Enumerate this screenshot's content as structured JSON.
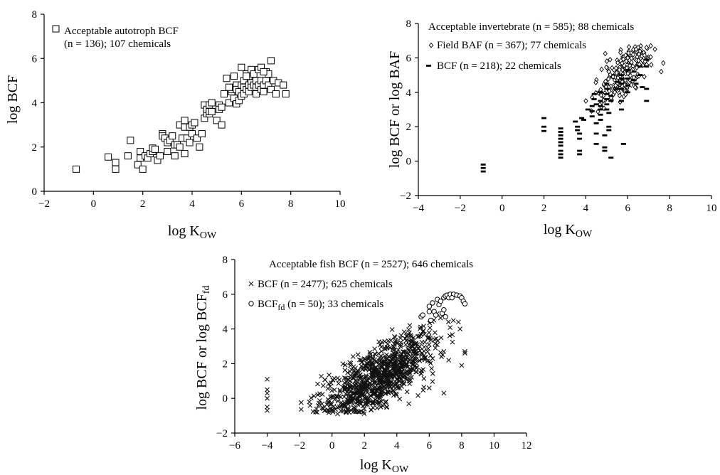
{
  "chart_data": [
    {
      "id": "autotroph",
      "type": "scatter",
      "xlabel_main": "log K",
      "xlabel_sub": "OW",
      "ylabel": "log BCF",
      "xlim": [
        -2,
        10
      ],
      "ylim": [
        0,
        8
      ],
      "xticks": [
        -2,
        0,
        2,
        4,
        6,
        8,
        10
      ],
      "yticks": [
        0,
        2,
        4,
        6,
        8
      ],
      "xtick_labels": [
        "−2",
        "0",
        "2",
        "4",
        "6",
        "8",
        "10"
      ],
      "ytick_labels": [
        "0",
        "2",
        "4",
        "6",
        "8"
      ],
      "legend_lines": [
        "Acceptable autotroph BCF",
        "(n = 136); 107 chemicals"
      ],
      "series": [
        {
          "marker": "square",
          "points": [
            [
              -0.7,
              1.0
            ],
            [
              0.6,
              1.55
            ],
            [
              0.9,
              1.3
            ],
            [
              0.9,
              1.0
            ],
            [
              1.4,
              1.6
            ],
            [
              1.5,
              2.3
            ],
            [
              1.8,
              1.2
            ],
            [
              1.9,
              1.5
            ],
            [
              1.9,
              1.8
            ],
            [
              2.0,
              1.0
            ],
            [
              2.1,
              1.6
            ],
            [
              2.2,
              1.5
            ],
            [
              2.3,
              1.7
            ],
            [
              2.4,
              1.8
            ],
            [
              2.4,
              1.95
            ],
            [
              2.5,
              1.9
            ],
            [
              2.6,
              1.4
            ],
            [
              2.7,
              1.6
            ],
            [
              2.8,
              2.6
            ],
            [
              2.8,
              2.5
            ],
            [
              2.9,
              2.4
            ],
            [
              3.0,
              1.8
            ],
            [
              3.0,
              2.2
            ],
            [
              3.1,
              2.3
            ],
            [
              3.2,
              2.5
            ],
            [
              3.3,
              1.6
            ],
            [
              3.3,
              2.1
            ],
            [
              3.4,
              2.1
            ],
            [
              3.5,
              2.0
            ],
            [
              3.5,
              3.0
            ],
            [
              3.6,
              2.4
            ],
            [
              3.7,
              1.7
            ],
            [
              3.7,
              2.9
            ],
            [
              3.7,
              3.2
            ],
            [
              3.8,
              2.4
            ],
            [
              3.9,
              2.2
            ],
            [
              3.9,
              2.9
            ],
            [
              4.0,
              2.6
            ],
            [
              4.0,
              3.0
            ],
            [
              4.1,
              3.1
            ],
            [
              4.2,
              2.4
            ],
            [
              4.3,
              2.0
            ],
            [
              4.4,
              2.6
            ],
            [
              4.5,
              3.3
            ],
            [
              4.5,
              3.9
            ],
            [
              4.6,
              3.5
            ],
            [
              4.6,
              3.7
            ],
            [
              4.7,
              3.5
            ],
            [
              4.7,
              3.6
            ],
            [
              4.7,
              3.9
            ],
            [
              4.8,
              3.6
            ],
            [
              4.8,
              4.0
            ],
            [
              5.0,
              3.2
            ],
            [
              5.1,
              3.9
            ],
            [
              5.1,
              3.7
            ],
            [
              5.2,
              3.0
            ],
            [
              5.2,
              3.8
            ],
            [
              5.3,
              4.4
            ],
            [
              5.4,
              5.1
            ],
            [
              5.5,
              4.0
            ],
            [
              5.6,
              4.5
            ],
            [
              5.6,
              4.6
            ],
            [
              5.7,
              4.2
            ],
            [
              5.7,
              4.7
            ],
            [
              5.7,
              5.2
            ],
            [
              5.8,
              3.95
            ],
            [
              5.8,
              4.8
            ],
            [
              5.8,
              4.6
            ],
            [
              5.9,
              4.1
            ],
            [
              5.9,
              4.5
            ],
            [
              6.0,
              4.3
            ],
            [
              6.0,
              4.8
            ],
            [
              6.0,
              5.6
            ],
            [
              6.1,
              4.7
            ],
            [
              6.1,
              5.0
            ],
            [
              6.1,
              4.4
            ],
            [
              6.2,
              4.6
            ],
            [
              6.2,
              5.3
            ],
            [
              6.3,
              4.8
            ],
            [
              6.3,
              5.2
            ],
            [
              6.3,
              4.5
            ],
            [
              6.4,
              4.9
            ],
            [
              6.4,
              5.5
            ],
            [
              6.4,
              4.7
            ],
            [
              6.5,
              4.8
            ],
            [
              6.5,
              5.3
            ],
            [
              6.6,
              4.7
            ],
            [
              6.6,
              5.0
            ],
            [
              6.6,
              4.4
            ],
            [
              6.7,
              4.8
            ],
            [
              6.7,
              5.5
            ],
            [
              6.8,
              4.6
            ],
            [
              6.8,
              5.0
            ],
            [
              6.8,
              5.6
            ],
            [
              6.9,
              4.8
            ],
            [
              6.9,
              4.5
            ],
            [
              7.0,
              5.0
            ],
            [
              7.0,
              5.4
            ],
            [
              7.1,
              5.3
            ],
            [
              7.1,
              4.8
            ],
            [
              7.2,
              5.9
            ],
            [
              7.2,
              4.6
            ],
            [
              7.3,
              5.0
            ],
            [
              7.4,
              4.4
            ],
            [
              7.5,
              4.9
            ],
            [
              7.7,
              4.8
            ],
            [
              7.8,
              4.4
            ],
            [
              6.2,
              5.2
            ],
            [
              5.5,
              4.7
            ],
            [
              6.9,
              5.4
            ]
          ]
        }
      ]
    },
    {
      "id": "invertebrate",
      "type": "scatter",
      "xlabel_main": "log K",
      "xlabel_sub": "OW",
      "ylabel": "log BCF or log BAF",
      "xlim": [
        -4,
        10
      ],
      "ylim": [
        -2,
        8
      ],
      "xticks": [
        -4,
        -2,
        0,
        2,
        4,
        6,
        8,
        10
      ],
      "yticks": [
        -2,
        0,
        2,
        4,
        6,
        8
      ],
      "xtick_labels": [
        "−4",
        "−2",
        "0",
        "2",
        "4",
        "6",
        "8",
        "10"
      ],
      "ytick_labels": [
        "−2",
        "0",
        "2",
        "4",
        "6",
        "8"
      ],
      "legend_title": "Acceptable invertebrate (n = 585); 88 chemicals",
      "series": [
        {
          "name": "Field BAF (n = 367); 77 chemicals",
          "marker": "diamond",
          "region": {
            "x": [
              3.8,
              7.8
            ],
            "y": [
              2.3,
              6.7
            ],
            "slope": 0.95,
            "intercept": -0.4,
            "spread": 0.9
          },
          "count": 180,
          "points": [
            [
              6.9,
              6.6
            ],
            [
              7.1,
              6.7
            ],
            [
              7.3,
              6.5
            ],
            [
              6.4,
              6.5
            ],
            [
              4.3,
              3.7
            ],
            [
              4.0,
              3.5
            ],
            [
              5.1,
              5.2
            ],
            [
              5.3,
              4.9
            ],
            [
              5.6,
              5.3
            ],
            [
              7.6,
              5.2
            ],
            [
              7.7,
              5.7
            ],
            [
              6.0,
              6.0
            ]
          ]
        },
        {
          "name": "BCF (n = 218); 22 chemicals",
          "marker": "dash",
          "points": [
            [
              -0.9,
              -0.2
            ],
            [
              -0.9,
              -0.4
            ],
            [
              -0.9,
              -0.6
            ],
            [
              2.0,
              2.5
            ],
            [
              2.0,
              2.0
            ],
            [
              2.0,
              1.75
            ],
            [
              2.8,
              1.7
            ],
            [
              2.8,
              1.5
            ],
            [
              2.8,
              1.3
            ],
            [
              2.8,
              1.1
            ],
            [
              2.8,
              0.9
            ],
            [
              2.8,
              0.6
            ],
            [
              2.8,
              0.4
            ],
            [
              2.8,
              0.2
            ],
            [
              2.8,
              1.9
            ],
            [
              3.5,
              2.3
            ],
            [
              3.6,
              2.0
            ],
            [
              3.6,
              1.8
            ],
            [
              3.7,
              1.6
            ],
            [
              3.7,
              1.3
            ],
            [
              3.7,
              0.6
            ],
            [
              3.7,
              0.4
            ],
            [
              3.8,
              2.5
            ],
            [
              4.3,
              2.6
            ],
            [
              4.3,
              2.9
            ],
            [
              4.3,
              3.2
            ],
            [
              4.4,
              3.6
            ],
            [
              4.4,
              3.9
            ],
            [
              4.5,
              3.3
            ],
            [
              4.5,
              2.2
            ],
            [
              4.5,
              1.6
            ],
            [
              4.5,
              1.0
            ],
            [
              4.7,
              4.0
            ],
            [
              4.7,
              3.5
            ],
            [
              4.7,
              3.2
            ],
            [
              4.7,
              3.0
            ],
            [
              4.7,
              2.7
            ],
            [
              4.7,
              2.4
            ],
            [
              4.9,
              1.5
            ],
            [
              4.9,
              0.8
            ],
            [
              4.9,
              0.6
            ],
            [
              5.0,
              4.5
            ],
            [
              5.0,
              4.2
            ],
            [
              5.0,
              3.9
            ],
            [
              5.0,
              3.6
            ],
            [
              5.0,
              3.3
            ],
            [
              5.0,
              3.0
            ],
            [
              5.1,
              2.8
            ],
            [
              5.1,
              2.0
            ],
            [
              5.1,
              1.8
            ],
            [
              5.2,
              3.8
            ],
            [
              5.2,
              3.5
            ],
            [
              5.2,
              0.2
            ],
            [
              5.7,
              3.0
            ],
            [
              5.7,
              3.5
            ],
            [
              5.7,
              4.2
            ],
            [
              5.7,
              4.5
            ],
            [
              5.7,
              4.8
            ],
            [
              5.7,
              5.0
            ],
            [
              5.8,
              1.0
            ],
            [
              6.0,
              4.0
            ],
            [
              6.0,
              4.4
            ],
            [
              6.0,
              4.8
            ],
            [
              6.0,
              5.3
            ],
            [
              6.3,
              5.2
            ],
            [
              6.3,
              4.7
            ],
            [
              6.4,
              4.5
            ],
            [
              6.6,
              5.5
            ],
            [
              6.6,
              5.0
            ],
            [
              6.7,
              4.3
            ],
            [
              6.9,
              3.5
            ],
            [
              6.9,
              4.2
            ],
            [
              6.9,
              5.5
            ],
            [
              6.9,
              5.9
            ],
            [
              5.5,
              4.6
            ],
            [
              5.5,
              4.2
            ],
            [
              4.1,
              3.0
            ],
            [
              3.9,
              2.4
            ]
          ]
        }
      ]
    },
    {
      "id": "fish",
      "type": "scatter",
      "xlabel_main": "log K",
      "xlabel_sub": "OW",
      "ylabel_main": "log BCF or log BCF",
      "ylabel_sub": "fd",
      "xlim": [
        -6,
        12
      ],
      "ylim": [
        -2,
        8
      ],
      "xticks": [
        -6,
        -4,
        -2,
        0,
        2,
        4,
        6,
        8,
        10,
        12
      ],
      "yticks": [
        -2,
        0,
        2,
        4,
        6,
        8
      ],
      "xtick_labels": [
        "−6",
        "−4",
        "−2",
        "0",
        "2",
        "4",
        "6",
        "8",
        "10",
        "12"
      ],
      "ytick_labels": [
        "−2",
        "0",
        "2",
        "4",
        "6",
        "8"
      ],
      "legend_title": "Acceptable fish BCF (n = 2527); 646 chemicals",
      "series": [
        {
          "name": "BCF (n = 2477); 625 chemicals",
          "marker": "x",
          "region": {
            "x": [
              -2.8,
              8.2
            ],
            "y": [
              -0.9,
              5.0
            ],
            "slope": 0.55,
            "intercept": -0.4,
            "spread": 1.1
          },
          "count": 900,
          "points": [
            [
              -4.0,
              1.1
            ],
            [
              -4.0,
              0.5
            ],
            [
              -4.0,
              0.3
            ],
            [
              -4.0,
              0.0
            ],
            [
              -4.0,
              -0.5
            ],
            [
              -4.0,
              -0.7
            ],
            [
              8.2,
              2.7
            ],
            [
              8.2,
              2.6
            ],
            [
              8.0,
              1.9
            ],
            [
              7.9,
              4.0
            ],
            [
              7.8,
              4.4
            ],
            [
              7.2,
              2.2
            ],
            [
              6.9,
              0.3
            ],
            [
              6.0,
              0.6
            ],
            [
              5.5,
              1.6
            ]
          ]
        },
        {
          "name": "BCF (n = 50); 33 chemicals",
          "name_main": "BCF",
          "name_sub": "fd",
          "name_rest": " (n = 50); 33 chemicals",
          "marker": "circle",
          "points": [
            [
              5.5,
              4.7
            ],
            [
              5.6,
              4.8
            ],
            [
              6.0,
              5.0
            ],
            [
              6.0,
              5.3
            ],
            [
              6.2,
              5.5
            ],
            [
              6.5,
              5.7
            ],
            [
              6.6,
              5.4
            ],
            [
              6.7,
              5.6
            ],
            [
              6.9,
              5.8
            ],
            [
              7.0,
              5.9
            ],
            [
              7.1,
              5.95
            ],
            [
              7.2,
              5.8
            ],
            [
              7.3,
              6.0
            ],
            [
              7.5,
              6.0
            ],
            [
              7.7,
              5.95
            ],
            [
              7.9,
              5.9
            ],
            [
              8.0,
              5.8
            ],
            [
              8.1,
              5.6
            ],
            [
              8.2,
              5.45
            ],
            [
              6.3,
              5.0
            ],
            [
              6.1,
              4.5
            ],
            [
              6.8,
              4.9
            ],
            [
              7.0,
              4.7
            ],
            [
              6.9,
              5.1
            ],
            [
              6.4,
              4.8
            ],
            [
              7.4,
              5.8
            ]
          ]
        }
      ]
    }
  ]
}
